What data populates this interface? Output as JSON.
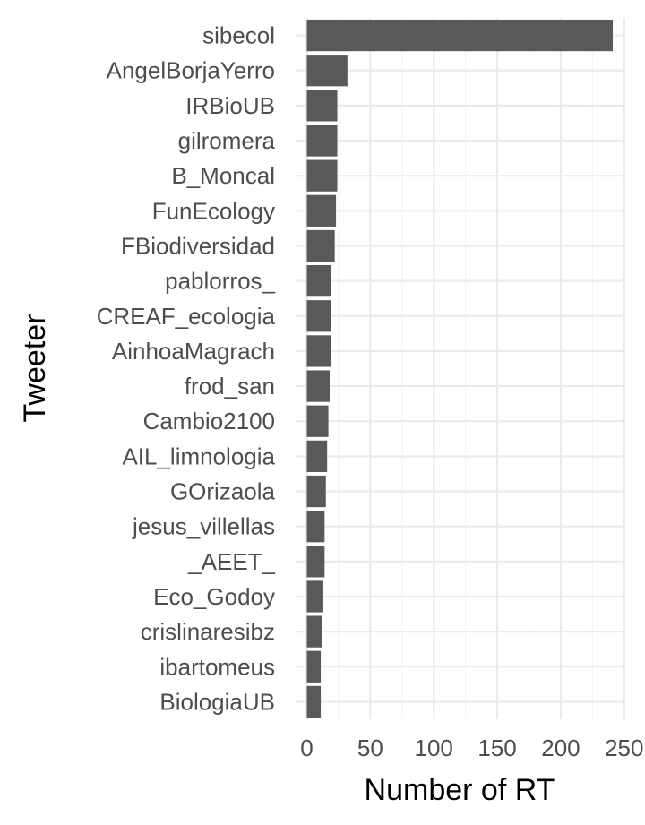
{
  "chart_data": {
    "type": "bar",
    "orientation": "horizontal",
    "categories": [
      "sibecol",
      "AngelBorjaYerro",
      "IRBioUB",
      "gilromera",
      "B_Moncal",
      "FunEcology",
      "FBiodiversidad",
      "pablorros_",
      "CREAF_ecologia",
      "AinhoaMagrach",
      "frod_san",
      "Cambio2100",
      "AIL_limnologia",
      "GOrizaola",
      "jesus_villellas",
      "_AEET_",
      "Eco_Godoy",
      "crislinaresibz",
      "ibartomeus",
      "BiologiaUB"
    ],
    "values": [
      241,
      32,
      24,
      24,
      24,
      23,
      22,
      19,
      19,
      19,
      18,
      17,
      16,
      15,
      14,
      14,
      13,
      12,
      11,
      11
    ],
    "xlabel": "Number of RT",
    "ylabel": "Tweeter",
    "xlim": [
      0,
      250
    ],
    "xticks": [
      "0",
      "50",
      "100",
      "150",
      "200",
      "250"
    ],
    "bar_color": "#595959",
    "grid": true
  }
}
